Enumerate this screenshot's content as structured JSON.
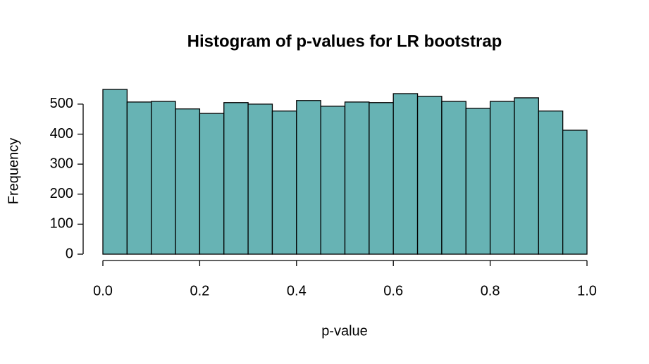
{
  "chart_data": {
    "type": "histogram",
    "title": "Histogram of p-values for LR bootstrap",
    "xlabel": "p-value",
    "ylabel": "Frequency",
    "bins": [
      0,
      0.05,
      0.1,
      0.15,
      0.2,
      0.25,
      0.3,
      0.35,
      0.4,
      0.45,
      0.5,
      0.55,
      0.6,
      0.65,
      0.7,
      0.75,
      0.8,
      0.85,
      0.9,
      0.95,
      1
    ],
    "values": [
      549,
      507,
      509,
      484,
      469,
      505,
      500,
      477,
      512,
      493,
      507,
      505,
      535,
      526,
      509,
      486,
      509,
      521,
      477,
      413
    ],
    "color": "#67b3b4",
    "xlim": [
      0,
      1
    ],
    "xticks": [
      {
        "value": 0,
        "label": "0.0"
      },
      0.2,
      0.4,
      0.6,
      0.8,
      {
        "value": 1,
        "label": "1.0"
      }
    ],
    "ylim": [
      0,
      549
    ],
    "yticks": [
      0,
      100,
      200,
      300,
      400,
      500
    ]
  }
}
